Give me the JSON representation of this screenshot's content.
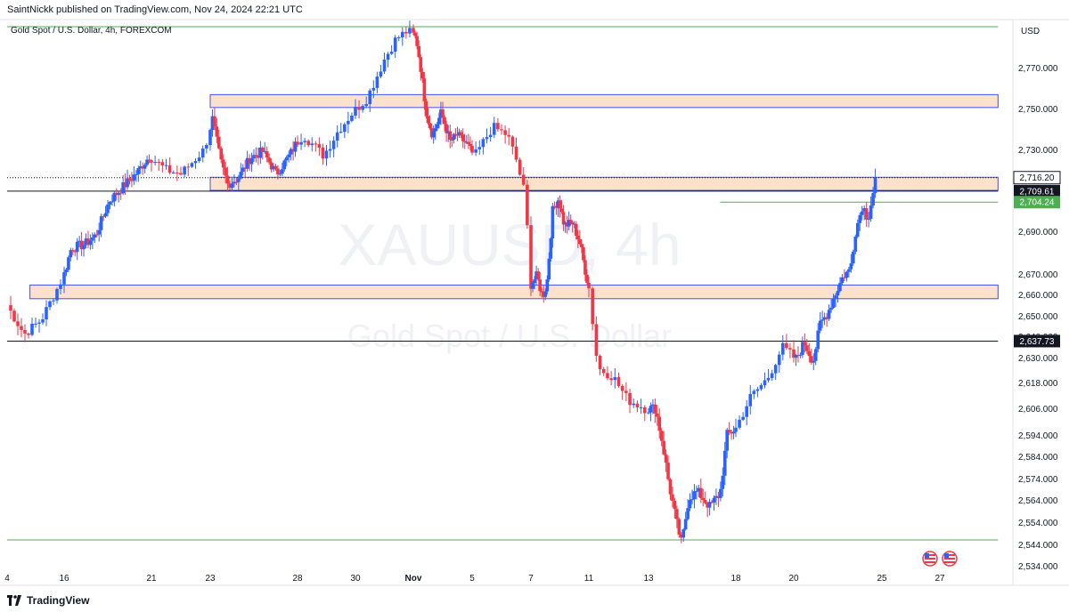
{
  "header": {
    "published": "SaintNickk published on TradingView.com, Nov 24, 2024 22:21 UTC"
  },
  "footer": {
    "brand": "TradingView"
  },
  "chart_data": {
    "type": "candlestick",
    "symbol_title": "Gold Spot / U.S. Dollar, 4h, FOREXCOM",
    "watermark_symbol": "XAUUSD, 4h",
    "watermark_name": "Gold Spot / U.S. Dollar",
    "currency": "USD",
    "colors": {
      "up": "#2962ff",
      "down": "#f23645",
      "zone_fill": "#fce2cc",
      "zone_border": "#3f51f5",
      "support_line": "#4caf50"
    },
    "y_ticks": [
      2770,
      2750,
      2730,
      2690,
      2670,
      2660,
      2650,
      2640,
      2630,
      2618,
      2606,
      2594,
      2584,
      2574,
      2564,
      2554,
      2544,
      2534
    ],
    "x_ticks": [
      {
        "label": "4",
        "day": 14
      },
      {
        "label": "16",
        "day": 16
      },
      {
        "label": "21",
        "day": 21
      },
      {
        "label": "23",
        "day": 23
      },
      {
        "label": "28",
        "day": 28
      },
      {
        "label": "30",
        "day": 30
      },
      {
        "label": "Nov",
        "day": 32
      },
      {
        "label": "5",
        "day": 36
      },
      {
        "label": "7",
        "day": 38
      },
      {
        "label": "11",
        "day": 42
      },
      {
        "label": "13",
        "day": 44
      },
      {
        "label": "18",
        "day": 49
      },
      {
        "label": "20",
        "day": 51
      },
      {
        "label": "25",
        "day": 56
      },
      {
        "label": "27",
        "day": 58
      }
    ],
    "price_labels": [
      {
        "label": "2,716.20",
        "value": 2716.2,
        "style": "last"
      },
      {
        "label": "2,709.61",
        "value": 2709.61,
        "style": "level"
      },
      {
        "label": "2,704.24",
        "value": 2704.24,
        "style": "support"
      },
      {
        "label": "2,637.73",
        "value": 2637.73,
        "style": "level"
      }
    ],
    "zones": [
      {
        "from_day": 23.0,
        "to_day": 60.8,
        "low": 2750.5,
        "high": 2756.8
      },
      {
        "from_day": 23.0,
        "to_day": 60.8,
        "low": 2710.0,
        "high": 2716.4
      },
      {
        "from_day": 14.8,
        "to_day": 60.8,
        "low": 2658.0,
        "high": 2664.6
      }
    ],
    "horizontal_lines": [
      {
        "value": 2790.0,
        "from_day": 14.0,
        "to_day": 60.8,
        "kind": "support"
      },
      {
        "value": 2546.0,
        "from_day": 14.0,
        "to_day": 60.8,
        "kind": "support"
      },
      {
        "value": 2709.61,
        "from_day": 14.0,
        "to_day": 60.8,
        "kind": "level"
      },
      {
        "value": 2637.73,
        "from_day": 14.0,
        "to_day": 60.8,
        "kind": "level"
      },
      {
        "value": 2704.24,
        "from_day": 48.1,
        "to_day": 60.8,
        "kind": "support"
      },
      {
        "value": 2716.2,
        "from_day": 14.0,
        "to_day": 60.8,
        "kind": "dotted"
      }
    ],
    "anchor_points": [
      [
        14.0,
        2655
      ],
      [
        14.6,
        2641
      ],
      [
        15.2,
        2648
      ],
      [
        15.8,
        2664
      ],
      [
        16.4,
        2682
      ],
      [
        17.2,
        2684
      ],
      [
        17.8,
        2688
      ],
      [
        18.6,
        2705
      ],
      [
        19.4,
        2712
      ],
      [
        20.2,
        2719
      ],
      [
        20.9,
        2727
      ],
      [
        21.5,
        2720
      ],
      [
        22.0,
        2718
      ],
      [
        22.8,
        2730
      ],
      [
        23.1,
        2746
      ],
      [
        23.6,
        2724
      ],
      [
        24.0,
        2713
      ],
      [
        24.6,
        2716
      ],
      [
        25.3,
        2726
      ],
      [
        26.0,
        2729
      ],
      [
        26.8,
        2718
      ],
      [
        27.6,
        2728
      ],
      [
        28.2,
        2737
      ],
      [
        28.9,
        2727
      ],
      [
        29.4,
        2739
      ],
      [
        29.9,
        2748
      ],
      [
        30.4,
        2755
      ],
      [
        31.0,
        2774
      ],
      [
        31.4,
        2784
      ],
      [
        31.8,
        2788
      ],
      [
        32.2,
        2784
      ],
      [
        32.5,
        2770
      ],
      [
        32.9,
        2747
      ],
      [
        33.3,
        2737
      ],
      [
        33.9,
        2748
      ],
      [
        34.5,
        2734
      ],
      [
        35.0,
        2737
      ],
      [
        35.6,
        2733
      ],
      [
        36.1,
        2727
      ],
      [
        36.7,
        2741
      ],
      [
        37.2,
        2737
      ],
      [
        37.5,
        2725
      ],
      [
        37.8,
        2708
      ],
      [
        38.0,
        2665
      ],
      [
        38.4,
        2669
      ],
      [
        38.8,
        2659
      ],
      [
        39.1,
        2665
      ],
      [
        39.5,
        2700
      ],
      [
        39.9,
        2706
      ],
      [
        40.3,
        2693
      ],
      [
        40.9,
        2694
      ],
      [
        41.4,
        2684
      ],
      [
        42.0,
        2663
      ],
      [
        42.3,
        2625
      ],
      [
        42.8,
        2621
      ],
      [
        43.3,
        2610
      ],
      [
        43.9,
        2606
      ],
      [
        44.4,
        2606
      ],
      [
        44.8,
        2590
      ],
      [
        45.2,
        2570
      ],
      [
        45.6,
        2554
      ],
      [
        45.9,
        2544
      ],
      [
        46.3,
        2565
      ],
      [
        46.8,
        2568
      ],
      [
        47.5,
        2561
      ],
      [
        48.1,
        2567
      ],
      [
        48.5,
        2594
      ],
      [
        49.0,
        2597
      ],
      [
        49.5,
        2611
      ],
      [
        50.1,
        2620
      ],
      [
        50.6,
        2635
      ],
      [
        51.1,
        2629
      ],
      [
        51.6,
        2637
      ],
      [
        52.1,
        2628
      ],
      [
        52.5,
        2646
      ],
      [
        52.9,
        2651
      ],
      [
        53.4,
        2661
      ],
      [
        53.8,
        2669
      ],
      [
        54.2,
        2672
      ],
      [
        54.5,
        2690
      ],
      [
        54.9,
        2703
      ],
      [
        55.2,
        2696
      ],
      [
        55.5,
        2709
      ],
      [
        55.7,
        2716
      ]
    ]
  }
}
